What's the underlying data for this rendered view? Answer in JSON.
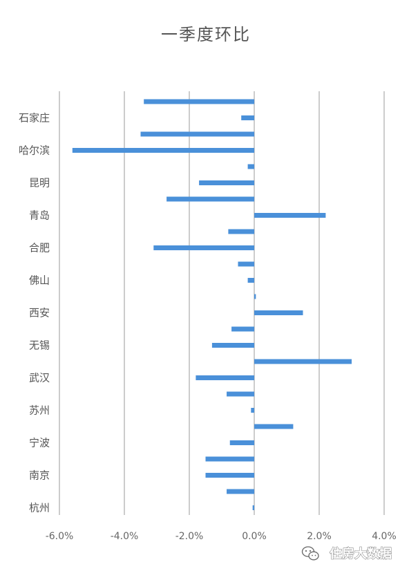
{
  "chart_data": {
    "type": "bar",
    "orientation": "horizontal",
    "title": "一季度环比",
    "xlabel": "",
    "ylabel": "",
    "xlim": [
      -0.06,
      0.04
    ],
    "x_ticks": [
      -0.06,
      -0.04,
      -0.02,
      0.0,
      0.02,
      0.04
    ],
    "x_tick_labels": [
      "-6.0%",
      "-4.0%",
      "-2.0%",
      "0.0%",
      "2.0%",
      "4.0%"
    ],
    "grid": "vertical",
    "legend": "none",
    "labeled_categories": [
      "石家庄",
      "哈尔滨",
      "昆明",
      "青岛",
      "合肥",
      "佛山",
      "西安",
      "无锡",
      "武汉",
      "苏州",
      "宁波",
      "南京",
      "杭州"
    ],
    "series": [
      {
        "values": [
          -0.034,
          -0.004,
          -0.035,
          -0.056,
          -0.002,
          -0.017,
          -0.027,
          0.022,
          -0.008,
          -0.031,
          -0.005,
          -0.002,
          0.0005,
          0.015,
          -0.007,
          -0.013,
          0.03,
          -0.018,
          -0.0085,
          -0.001,
          0.012,
          -0.0075,
          -0.015,
          -0.015,
          -0.0085,
          -0.0005
        ],
        "color": "#4a90d9"
      }
    ]
  },
  "watermark": {
    "text": "住房大数据",
    "icon": "wechat-icon"
  }
}
